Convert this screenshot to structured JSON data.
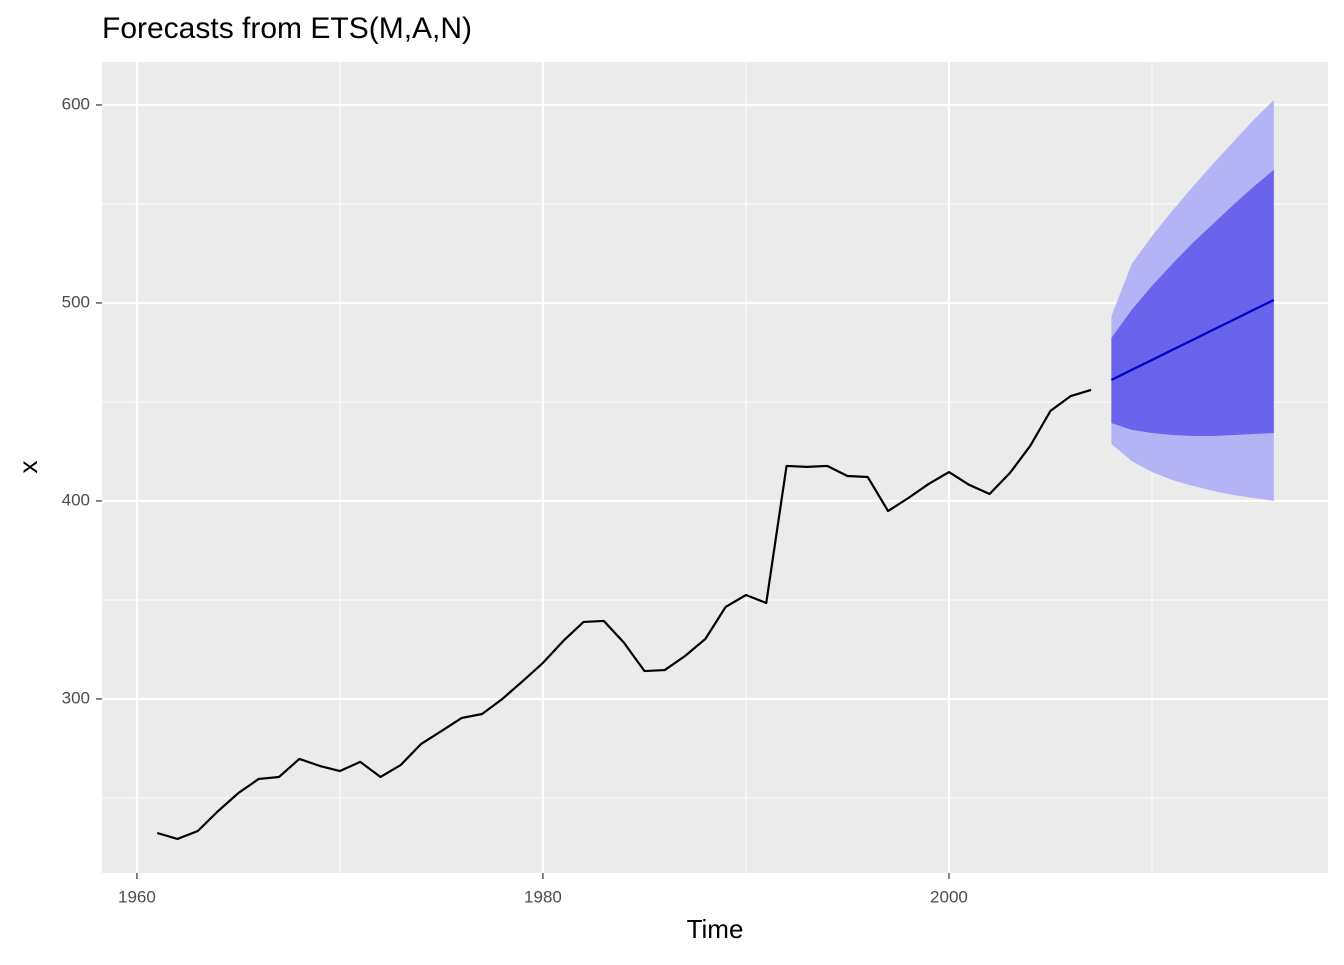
{
  "chart_data": {
    "type": "line",
    "title": "Forecasts from ETS(M,A,N)",
    "xlabel": "Time",
    "ylabel": "x",
    "xlim": [
      1958.28,
      2018.67
    ],
    "ylim": [
      212.1,
      621.7
    ],
    "xticks": [
      1960,
      1980,
      2000
    ],
    "yticks": [
      300,
      400,
      500,
      600
    ],
    "xminor": [
      1970,
      1990,
      2010
    ],
    "yminor": [
      250,
      350,
      450,
      550
    ],
    "grid": true,
    "bands": [
      {
        "color": "#b3b3f5",
        "x": [
          2008,
          2009,
          2010,
          2011,
          2012,
          2013,
          2014,
          2015,
          2016
        ],
        "lower": [
          428.8,
          420.2,
          414.6,
          410.6,
          407.6,
          405.1,
          403.0,
          401.5,
          400.0
        ],
        "upper": [
          493.4,
          519.7,
          533.8,
          546.5,
          558.6,
          570.2,
          581.3,
          592.4,
          602.5
        ]
      },
      {
        "color": "#6a63eb",
        "x": [
          2008,
          2009,
          2010,
          2011,
          2012,
          2013,
          2014,
          2015,
          2016
        ],
        "lower": [
          439.4,
          435.9,
          434.3,
          433.3,
          432.8,
          432.8,
          433.3,
          433.8,
          434.3
        ],
        "upper": [
          482.3,
          496.5,
          508.6,
          519.7,
          530.3,
          539.9,
          549.5,
          558.6,
          567.2
        ]
      }
    ],
    "series": [
      {
        "color": "#000000",
        "x": [
          1961,
          1962,
          1963,
          1964,
          1965,
          1966,
          1967,
          1968,
          1969,
          1970,
          1971,
          1972,
          1973,
          1974,
          1975,
          1976,
          1977,
          1978,
          1979,
          1980,
          1981,
          1982,
          1983,
          1984,
          1985,
          1986,
          1987,
          1988,
          1989,
          1990,
          1991,
          1992,
          1993,
          1994,
          1995,
          1996,
          1997,
          1998,
          1999,
          2000,
          2001,
          2002,
          2003,
          2004,
          2005,
          2006,
          2007
        ],
        "values": [
          232.3,
          229.3,
          233.3,
          243.4,
          252.5,
          259.6,
          260.6,
          269.7,
          266.2,
          263.6,
          268.2,
          260.6,
          266.7,
          277.3,
          283.8,
          290.4,
          292.4,
          300.0,
          309.0,
          318.2,
          329.3,
          338.9,
          339.4,
          328.3,
          314.1,
          314.6,
          321.7,
          330.3,
          346.5,
          352.5,
          348.5,
          417.7,
          417.2,
          417.7,
          412.6,
          412.1,
          394.9,
          401.5,
          408.6,
          414.6,
          408.1,
          403.5,
          414.1,
          427.8,
          445.5,
          453.0,
          456.1
        ]
      },
      {
        "color": "#0000cc",
        "x": [
          2008,
          2009,
          2010,
          2011,
          2012,
          2013,
          2014,
          2015,
          2016
        ],
        "values": [
          461.1,
          466.2,
          471.2,
          476.3,
          481.3,
          486.4,
          491.4,
          496.5,
          501.5
        ]
      }
    ]
  }
}
